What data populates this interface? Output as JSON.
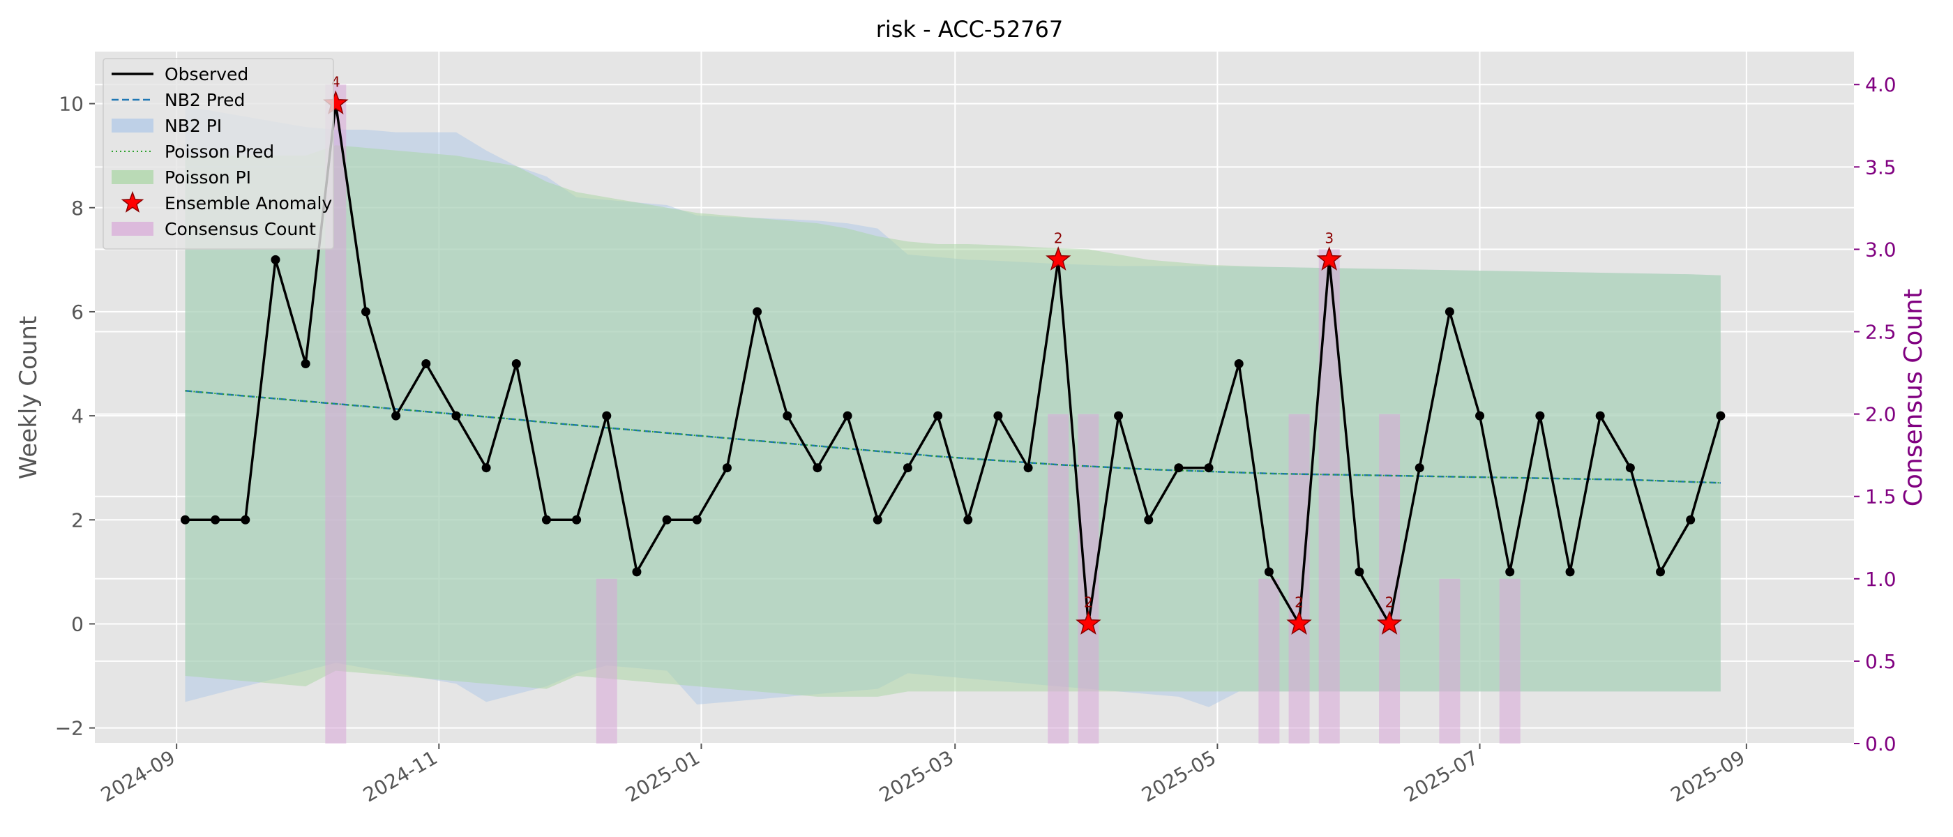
{
  "chart_data": {
    "type": "line",
    "title": "risk - ACC-52767",
    "ylabel": "Weekly Count",
    "y2label": "Consensus Count",
    "xlabel": "",
    "ylim": [
      -2.3,
      11.0
    ],
    "y2lim": [
      0.0,
      4.2
    ],
    "xlim": [
      "2024-08-13",
      "2025-09-26"
    ],
    "grid": true,
    "legend_position": "upper-left",
    "y_ticks": [
      -2,
      0,
      2,
      4,
      6,
      8,
      10
    ],
    "y2_ticks": [
      0.0,
      0.5,
      1.0,
      1.5,
      2.0,
      2.5,
      3.0,
      3.5,
      4.0
    ],
    "y2_tick_labels": [
      "0.0",
      "0.5",
      "1.0",
      "1.5",
      "2.0",
      "2.5",
      "3.0",
      "3.5",
      "4.0"
    ],
    "x_ticks": [
      "2024-09-01",
      "2024-11-01",
      "2025-01-01",
      "2025-03-01",
      "2025-05-01",
      "2025-07-01",
      "2025-09-01"
    ],
    "x_tick_labels": [
      "2024-09",
      "2024-11",
      "2025-01",
      "2025-03",
      "2025-05",
      "2025-07",
      "2025-09"
    ],
    "legend": [
      {
        "key": "observed",
        "label": "Observed"
      },
      {
        "key": "nb2_pred",
        "label": "NB2 Pred"
      },
      {
        "key": "nb2_pi",
        "label": "NB2 PI"
      },
      {
        "key": "poisson_pred",
        "label": "Poisson Pred"
      },
      {
        "key": "poisson_pi",
        "label": "Poisson PI"
      },
      {
        "key": "anomaly",
        "label": "Ensemble Anomaly"
      },
      {
        "key": "consensus",
        "label": "Consensus Count"
      }
    ],
    "colors": {
      "observed": "#000000",
      "nb2_pred": "#1f77b4",
      "nb2_pi": "#aec7e8",
      "poisson_pred": "#2ca02c",
      "poisson_pi": "#a8d5a2",
      "anomaly": "#ff0000",
      "consensus": "#d8a8d8",
      "y2_axis": "#800080",
      "anomaly_label": "#8b0000"
    },
    "x": [
      "2024-09-03",
      "2024-09-10",
      "2024-09-17",
      "2024-09-24",
      "2024-10-01",
      "2024-10-08",
      "2024-10-15",
      "2024-10-22",
      "2024-10-29",
      "2024-11-05",
      "2024-11-12",
      "2024-11-19",
      "2024-11-26",
      "2024-12-03",
      "2024-12-10",
      "2024-12-17",
      "2024-12-24",
      "2024-12-31",
      "2025-01-07",
      "2025-01-14",
      "2025-01-21",
      "2025-01-28",
      "2025-02-04",
      "2025-02-11",
      "2025-02-18",
      "2025-02-25",
      "2025-03-04",
      "2025-03-11",
      "2025-03-18",
      "2025-03-25",
      "2025-04-01",
      "2025-04-08",
      "2025-04-15",
      "2025-04-22",
      "2025-04-29",
      "2025-05-06",
      "2025-05-13",
      "2025-05-20",
      "2025-05-27",
      "2025-06-03",
      "2025-06-10",
      "2025-06-17",
      "2025-06-24",
      "2025-07-01",
      "2025-07-08",
      "2025-07-15",
      "2025-07-22",
      "2025-07-29",
      "2025-08-05",
      "2025-08-12",
      "2025-08-19",
      "2025-08-26"
    ],
    "series": [
      {
        "key": "observed",
        "name": "Observed",
        "values": [
          2,
          2,
          2,
          7,
          5,
          10,
          6,
          4,
          5,
          4,
          3,
          5,
          2,
          2,
          4,
          1,
          2,
          2,
          3,
          6,
          4,
          3,
          4,
          2,
          3,
          4,
          2,
          4,
          3,
          7,
          0,
          4,
          2,
          3,
          3,
          5,
          1,
          0,
          7,
          1,
          0,
          3,
          6,
          4,
          1,
          4,
          1,
          4,
          3,
          1,
          2,
          4
        ]
      },
      {
        "key": "nb2_pred",
        "name": "NB2 Pred",
        "values": [
          4.48,
          4.43,
          4.38,
          4.33,
          4.28,
          4.23,
          4.18,
          4.13,
          4.08,
          4.03,
          3.98,
          3.93,
          3.87,
          3.82,
          3.77,
          3.72,
          3.67,
          3.62,
          3.57,
          3.52,
          3.47,
          3.42,
          3.37,
          3.32,
          3.27,
          3.22,
          3.18,
          3.14,
          3.1,
          3.06,
          3.03,
          3.0,
          2.97,
          2.95,
          2.93,
          2.91,
          2.89,
          2.88,
          2.87,
          2.86,
          2.85,
          2.84,
          2.83,
          2.82,
          2.81,
          2.8,
          2.79,
          2.78,
          2.77,
          2.75,
          2.73,
          2.71
        ]
      },
      {
        "key": "poisson_pred",
        "name": "Poisson Pred",
        "values": [
          4.48,
          4.43,
          4.38,
          4.33,
          4.28,
          4.23,
          4.18,
          4.13,
          4.08,
          4.03,
          3.98,
          3.93,
          3.87,
          3.82,
          3.77,
          3.72,
          3.67,
          3.62,
          3.57,
          3.52,
          3.47,
          3.42,
          3.37,
          3.32,
          3.27,
          3.22,
          3.18,
          3.14,
          3.1,
          3.06,
          3.03,
          3.0,
          2.97,
          2.95,
          2.93,
          2.91,
          2.89,
          2.88,
          2.87,
          2.86,
          2.85,
          2.84,
          2.83,
          2.82,
          2.81,
          2.8,
          2.79,
          2.78,
          2.77,
          2.75,
          2.73,
          2.71
        ]
      }
    ],
    "nb2_pi": {
      "upper": [
        9.95,
        9.85,
        9.75,
        9.65,
        9.55,
        9.5,
        9.5,
        9.45,
        9.45,
        9.45,
        9.1,
        8.8,
        8.6,
        8.2,
        8.15,
        8.1,
        8.05,
        7.85,
        7.82,
        7.8,
        7.78,
        7.75,
        7.7,
        7.6,
        7.1,
        7.05,
        7.0,
        6.98,
        6.95,
        6.92,
        6.9,
        6.88,
        6.88,
        6.88,
        6.88,
        6.87,
        6.86,
        6.85,
        6.84,
        6.83,
        6.82,
        6.81,
        6.8,
        6.79,
        6.78,
        6.77,
        6.76,
        6.75,
        6.74,
        6.73,
        6.72,
        6.7
      ],
      "lower": [
        -1.5,
        -1.35,
        -1.2,
        -1.05,
        -0.9,
        -0.75,
        -0.85,
        -0.95,
        -1.05,
        -1.15,
        -1.5,
        -1.35,
        -1.2,
        -0.95,
        -0.8,
        -0.85,
        -0.9,
        -1.55,
        -1.5,
        -1.45,
        -1.4,
        -1.35,
        -1.3,
        -1.25,
        -0.95,
        -1.0,
        -1.05,
        -1.1,
        -1.15,
        -1.2,
        -1.25,
        -1.3,
        -1.35,
        -1.4,
        -1.6,
        -1.3,
        -1.3,
        -1.3,
        -1.3,
        -1.3,
        -1.3,
        -1.3,
        -1.3,
        -1.3,
        -1.3,
        -1.3,
        -1.3,
        -1.3,
        -1.3,
        -1.3,
        -1.3,
        -1.3
      ]
    },
    "poisson_pi": {
      "upper": [
        9.0,
        9.0,
        9.0,
        9.0,
        9.0,
        9.2,
        9.15,
        9.1,
        9.05,
        9.0,
        8.9,
        8.8,
        8.5,
        8.3,
        8.2,
        8.1,
        8.0,
        7.9,
        7.85,
        7.8,
        7.75,
        7.7,
        7.6,
        7.45,
        7.35,
        7.3,
        7.3,
        7.28,
        7.25,
        7.22,
        7.2,
        7.1,
        7.0,
        6.95,
        6.9,
        6.88,
        6.86,
        6.85,
        6.84,
        6.83,
        6.82,
        6.81,
        6.8,
        6.79,
        6.78,
        6.77,
        6.76,
        6.75,
        6.74,
        6.73,
        6.72,
        6.7
      ],
      "lower": [
        -1.0,
        -1.05,
        -1.1,
        -1.15,
        -1.2,
        -0.9,
        -0.95,
        -1.0,
        -1.05,
        -1.1,
        -1.15,
        -1.2,
        -1.25,
        -1.0,
        -1.05,
        -1.1,
        -1.15,
        -1.2,
        -1.25,
        -1.3,
        -1.35,
        -1.4,
        -1.4,
        -1.4,
        -1.3,
        -1.3,
        -1.3,
        -1.3,
        -1.3,
        -1.3,
        -1.3,
        -1.3,
        -1.3,
        -1.3,
        -1.3,
        -1.3,
        -1.3,
        -1.3,
        -1.3,
        -1.3,
        -1.3,
        -1.3,
        -1.3,
        -1.3,
        -1.3,
        -1.3,
        -1.3,
        -1.3,
        -1.3,
        -1.3,
        -1.3,
        -1.3
      ]
    },
    "anomalies": [
      {
        "x": "2024-10-08",
        "y": 10,
        "label": "4"
      },
      {
        "x": "2025-03-25",
        "y": 7,
        "label": "2"
      },
      {
        "x": "2025-04-01",
        "y": 0,
        "label": "2"
      },
      {
        "x": "2025-05-20",
        "y": 0,
        "label": "2"
      },
      {
        "x": "2025-05-27",
        "y": 7,
        "label": "3"
      },
      {
        "x": "2025-06-10",
        "y": 0,
        "label": "2"
      }
    ],
    "consensus": [
      {
        "x": "2024-10-08",
        "value": 4
      },
      {
        "x": "2024-12-10",
        "value": 1
      },
      {
        "x": "2025-03-25",
        "value": 2
      },
      {
        "x": "2025-04-01",
        "value": 2
      },
      {
        "x": "2025-05-13",
        "value": 1
      },
      {
        "x": "2025-05-20",
        "value": 2
      },
      {
        "x": "2025-05-27",
        "value": 3
      },
      {
        "x": "2025-06-10",
        "value": 2
      },
      {
        "x": "2025-06-24",
        "value": 1
      },
      {
        "x": "2025-07-08",
        "value": 1
      }
    ]
  }
}
